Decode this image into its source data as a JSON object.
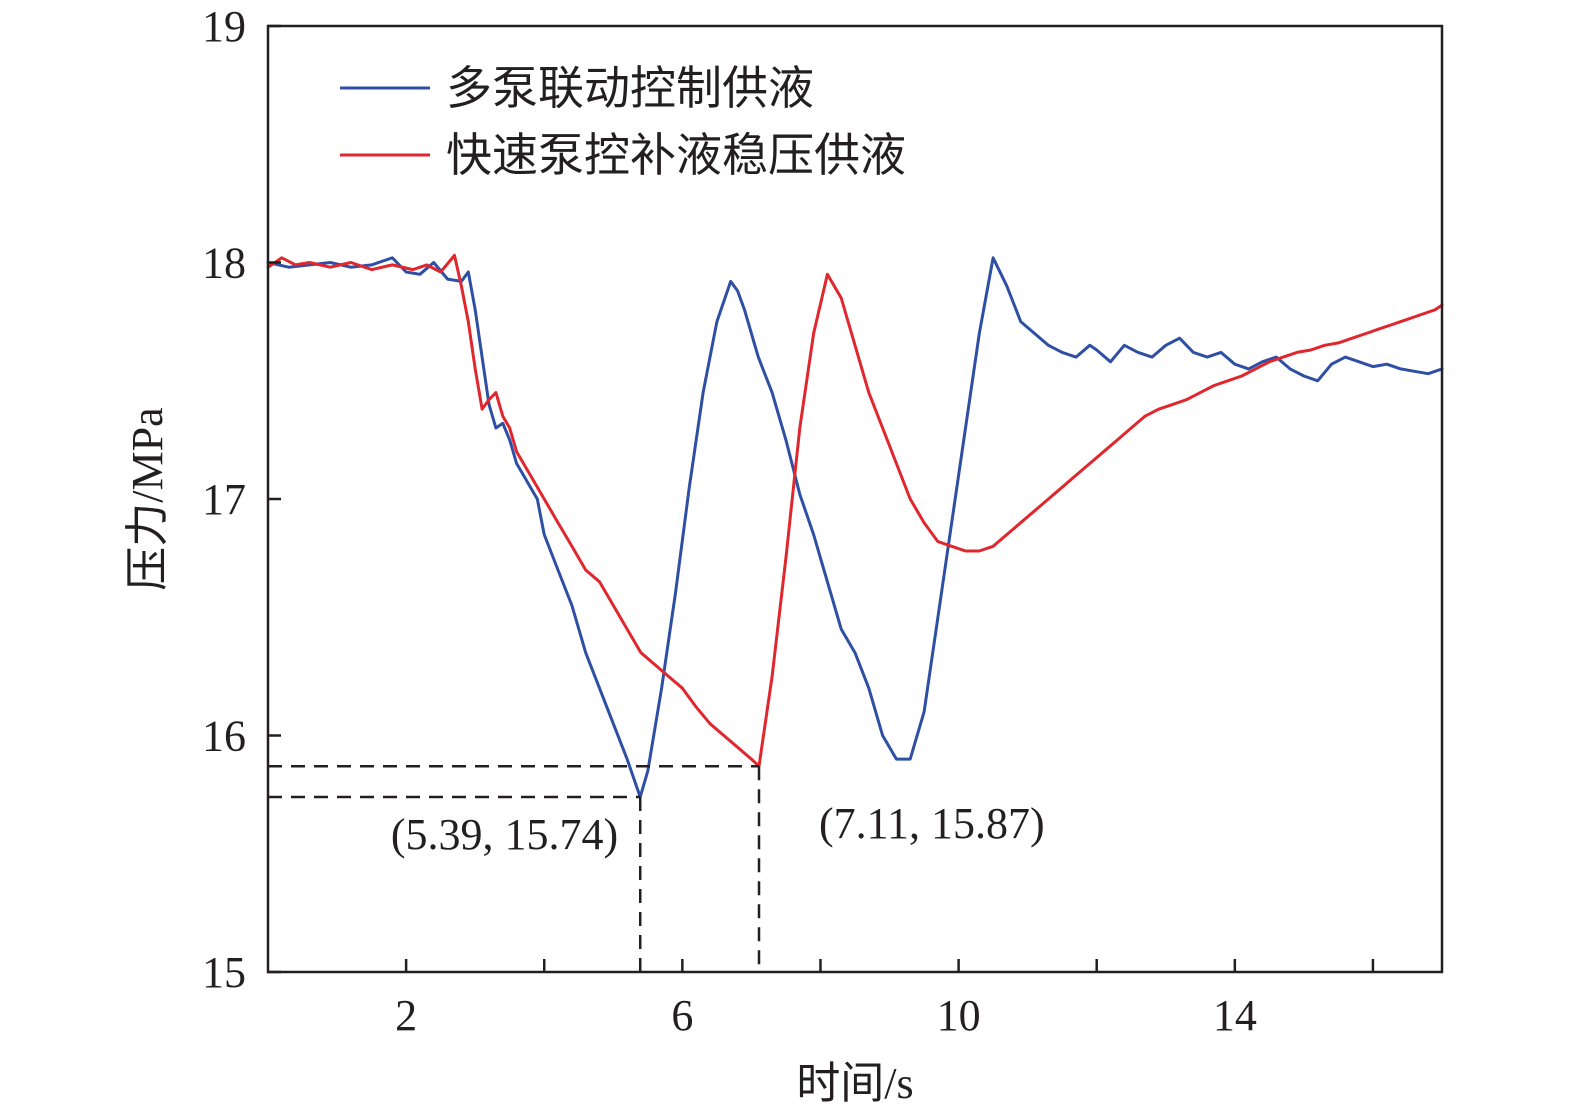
{
  "chart_data": {
    "type": "line",
    "xlabel": "时间/s",
    "ylabel": "压力/MPa",
    "xlim": [
      0,
      17
    ],
    "ylim": [
      15,
      19
    ],
    "x_ticks": [
      2,
      6,
      10,
      14
    ],
    "x_tick_labels": [
      "2",
      "6",
      "10",
      "14"
    ],
    "x_minor_ticks": [
      4,
      8,
      12,
      16
    ],
    "y_ticks": [
      15,
      16,
      17,
      18,
      19
    ],
    "y_tick_labels": [
      "15",
      "16",
      "17",
      "18",
      "19"
    ],
    "grid": false,
    "legend": {
      "position": "top-left"
    },
    "series": [
      {
        "name": "多泵联动控制供液",
        "color": "#2e4fa3",
        "x": [
          0,
          0.3,
          0.6,
          0.9,
          1.2,
          1.5,
          1.8,
          2.0,
          2.2,
          2.4,
          2.6,
          2.8,
          2.9,
          3.0,
          3.1,
          3.2,
          3.3,
          3.4,
          3.5,
          3.6,
          3.7,
          3.8,
          3.9,
          4.0,
          4.2,
          4.4,
          4.6,
          4.8,
          5.0,
          5.2,
          5.39,
          5.5,
          5.7,
          5.9,
          6.1,
          6.3,
          6.5,
          6.7,
          6.8,
          6.9,
          7.1,
          7.3,
          7.5,
          7.7,
          7.9,
          8.1,
          8.3,
          8.5,
          8.7,
          8.9,
          9.1,
          9.3,
          9.5,
          9.7,
          9.9,
          10.1,
          10.3,
          10.5,
          10.7,
          10.9,
          11.1,
          11.3,
          11.5,
          11.7,
          11.9,
          12.0,
          12.2,
          12.4,
          12.6,
          12.8,
          13.0,
          13.2,
          13.4,
          13.6,
          13.8,
          14.0,
          14.2,
          14.4,
          14.6,
          14.8,
          15.0,
          15.2,
          15.4,
          15.6,
          15.8,
          16.0,
          16.2,
          16.4,
          16.6,
          16.8,
          17.0
        ],
        "y": [
          18.0,
          17.98,
          17.99,
          18.0,
          17.98,
          17.99,
          18.02,
          17.96,
          17.95,
          18.0,
          17.93,
          17.92,
          17.96,
          17.8,
          17.6,
          17.4,
          17.3,
          17.32,
          17.25,
          17.15,
          17.1,
          17.05,
          17.0,
          16.85,
          16.7,
          16.55,
          16.35,
          16.2,
          16.05,
          15.9,
          15.74,
          15.85,
          16.2,
          16.6,
          17.05,
          17.45,
          17.75,
          17.92,
          17.88,
          17.8,
          17.6,
          17.45,
          17.25,
          17.02,
          16.85,
          16.65,
          16.45,
          16.35,
          16.2,
          16.0,
          15.9,
          15.9,
          16.1,
          16.5,
          16.9,
          17.3,
          17.7,
          18.02,
          17.9,
          17.75,
          17.7,
          17.65,
          17.62,
          17.6,
          17.65,
          17.63,
          17.58,
          17.65,
          17.62,
          17.6,
          17.65,
          17.68,
          17.62,
          17.6,
          17.62,
          17.57,
          17.55,
          17.58,
          17.6,
          17.55,
          17.52,
          17.5,
          17.57,
          17.6,
          17.58,
          17.56,
          17.57,
          17.55,
          17.54,
          17.53,
          17.55
        ]
      },
      {
        "name": "快速泵控补液稳压供液",
        "color": "#e0272e",
        "x": [
          0,
          0.2,
          0.4,
          0.6,
          0.9,
          1.2,
          1.5,
          1.8,
          2.1,
          2.3,
          2.5,
          2.7,
          2.8,
          2.9,
          3.0,
          3.1,
          3.2,
          3.3,
          3.4,
          3.5,
          3.6,
          3.8,
          4.0,
          4.2,
          4.4,
          4.6,
          4.8,
          5.0,
          5.2,
          5.4,
          5.6,
          5.8,
          6.0,
          6.2,
          6.4,
          6.6,
          6.8,
          7.0,
          7.11,
          7.3,
          7.5,
          7.7,
          7.9,
          8.1,
          8.3,
          8.5,
          8.7,
          8.9,
          9.1,
          9.3,
          9.5,
          9.7,
          9.9,
          10.1,
          10.3,
          10.5,
          10.7,
          10.9,
          11.1,
          11.3,
          11.5,
          11.7,
          11.9,
          12.1,
          12.3,
          12.5,
          12.7,
          12.9,
          13.1,
          13.3,
          13.5,
          13.7,
          13.9,
          14.1,
          14.3,
          14.5,
          14.7,
          14.9,
          15.1,
          15.3,
          15.5,
          15.7,
          15.9,
          16.1,
          16.3,
          16.5,
          16.7,
          16.9,
          17.0
        ],
        "y": [
          17.98,
          18.02,
          17.99,
          18.0,
          17.98,
          18.0,
          17.97,
          17.99,
          17.97,
          17.99,
          17.96,
          18.03,
          17.9,
          17.75,
          17.55,
          17.38,
          17.42,
          17.45,
          17.35,
          17.3,
          17.2,
          17.1,
          17.0,
          16.9,
          16.8,
          16.7,
          16.65,
          16.55,
          16.45,
          16.35,
          16.3,
          16.25,
          16.2,
          16.12,
          16.05,
          16.0,
          15.95,
          15.9,
          15.87,
          16.25,
          16.75,
          17.3,
          17.7,
          17.95,
          17.85,
          17.65,
          17.45,
          17.3,
          17.15,
          17.0,
          16.9,
          16.82,
          16.8,
          16.78,
          16.78,
          16.8,
          16.85,
          16.9,
          16.95,
          17.0,
          17.05,
          17.1,
          17.15,
          17.2,
          17.25,
          17.3,
          17.35,
          17.38,
          17.4,
          17.42,
          17.45,
          17.48,
          17.5,
          17.52,
          17.55,
          17.58,
          17.6,
          17.62,
          17.63,
          17.65,
          17.66,
          17.68,
          17.7,
          17.72,
          17.74,
          17.76,
          17.78,
          17.8,
          17.82
        ]
      }
    ],
    "annotations": [
      {
        "label": "(5.39, 15.74)",
        "x": 5.39,
        "y": 15.74
      },
      {
        "label": "(7.11, 15.87)",
        "x": 7.11,
        "y": 15.87
      }
    ]
  }
}
